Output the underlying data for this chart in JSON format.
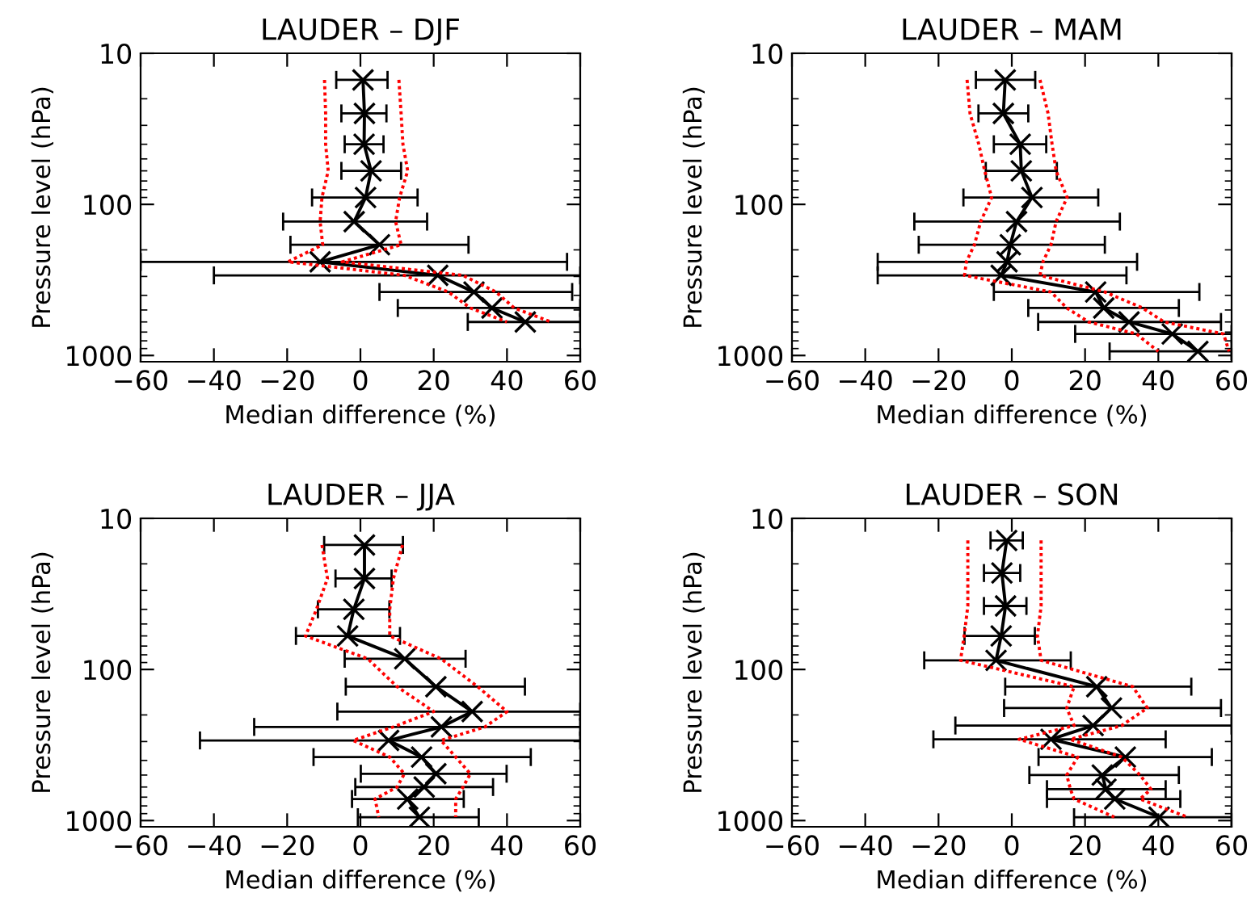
{
  "chart_data": [
    {
      "type": "line",
      "title": "LAUDER – DJF",
      "xlabel": "Median difference (%)",
      "ylabel": "Pressure level (hPa)",
      "log": "y",
      "grid": false,
      "xlim": [
        -60,
        60
      ],
      "xticks": [
        {
          "value": -60,
          "label": "−60"
        },
        {
          "value": -40,
          "label": "−40"
        },
        {
          "value": -20,
          "label": "−20"
        },
        0,
        20,
        40,
        60
      ],
      "ylim": [
        1100,
        10
      ],
      "yticks": [
        10,
        100,
        1000
      ],
      "series": [
        {
          "color": "#000000",
          "marker": "cross",
          "line_style": "solid",
          "x": [
            0.7,
            1.1,
            1.0,
            2.9,
            1.4,
            -1.7,
            5.2,
            -11,
            21.1,
            31,
            35.9,
            45
          ],
          "values": [
            15,
            25,
            40,
            60,
            90,
            130,
            185,
            240,
            295,
            380,
            485,
            600
          ],
          "xerrors": [
            [
              -6.6,
              7.4
            ],
            [
              -5.2,
              7.1
            ],
            [
              -4.3,
              6.3
            ],
            [
              -5.2,
              11.1
            ],
            [
              -13.2,
              15.6
            ],
            [
              -21.1,
              18.2
            ],
            [
              -19.1,
              29.5
            ],
            [
              -60,
              56.4
            ],
            [
              -40,
              60
            ],
            [
              5.2,
              57.8
            ],
            [
              10.2,
              60
            ],
            [
              29.3,
              60
            ]
          ]
        },
        {
          "color": "#ff0000",
          "marker": "none",
          "line_style": "dotted",
          "x": [
            -9.8,
            -9.5,
            -9.5,
            -8.8,
            -10.5,
            -11,
            -10.3,
            -19.8,
            12,
            24,
            30,
            40
          ],
          "values": [
            15,
            25,
            40,
            60,
            90,
            130,
            185,
            240,
            295,
            380,
            485,
            600
          ]
        },
        {
          "color": "#ff0000",
          "marker": "none",
          "line_style": "dotted",
          "x": [
            10.5,
            11.1,
            11.6,
            12.9,
            10.7,
            9.6,
            11.1,
            -5,
            28,
            37,
            42,
            52
          ],
          "values": [
            15,
            25,
            40,
            60,
            90,
            130,
            185,
            240,
            295,
            380,
            485,
            600
          ]
        }
      ]
    },
    {
      "type": "line",
      "title": "LAUDER – MAM",
      "xlabel": "Median difference (%)",
      "ylabel": "Pressure level (hPa)",
      "log": "y",
      "grid": false,
      "xlim": [
        -60,
        60
      ],
      "xticks": [
        {
          "value": -60,
          "label": "−60"
        },
        {
          "value": -40,
          "label": "−40"
        },
        {
          "value": -20,
          "label": "−20"
        },
        0,
        20,
        40,
        60
      ],
      "ylim": [
        1100,
        10
      ],
      "yticks": [
        10,
        100,
        1000
      ],
      "series": [
        {
          "color": "#000000",
          "marker": "cross",
          "line_style": "solid",
          "x": [
            -1.8,
            -2.3,
            2.3,
            2.6,
            5.5,
            1.3,
            -0.4,
            -1.3,
            -2.9,
            22.9,
            25.1,
            32,
            43.8,
            50.8
          ],
          "values": [
            15,
            25,
            40,
            60,
            90,
            130,
            185,
            240,
            295,
            380,
            485,
            600,
            720,
            940
          ],
          "xerrors": [
            [
              -9.8,
              6.4
            ],
            [
              -9.1,
              4.5
            ],
            [
              -4.9,
              9.4
            ],
            [
              -7.1,
              12.3
            ],
            [
              -13.2,
              23.6
            ],
            [
              -26.6,
              29.5
            ],
            [
              -25.4,
              25.4
            ],
            [
              -36.6,
              34.2
            ],
            [
              -36.6,
              31.3
            ],
            [
              -4.9,
              51.2
            ],
            [
              4.5,
              45.6
            ],
            [
              7.2,
              57.1
            ],
            [
              17.3,
              60
            ],
            [
              26.7,
              60
            ]
          ]
        },
        {
          "color": "#ff0000",
          "marker": "none",
          "line_style": "dotted",
          "x": [
            -12.2,
            -11.4,
            -9,
            -7.4,
            -5.5,
            -8.5,
            -10.2,
            -12.4,
            -12.9,
            10.7,
            15,
            21,
            34,
            40
          ],
          "values": [
            15,
            25,
            40,
            60,
            90,
            130,
            185,
            240,
            295,
            380,
            485,
            600,
            720,
            940
          ]
        },
        {
          "color": "#ff0000",
          "marker": "none",
          "line_style": "dotted",
          "x": [
            7.7,
            9.9,
            11,
            12.1,
            15.1,
            12.1,
            10.7,
            8.5,
            7.7,
            25.4,
            35.7,
            41.6,
            57.8,
            59.3
          ],
          "values": [
            15,
            25,
            40,
            60,
            90,
            130,
            185,
            240,
            295,
            380,
            485,
            600,
            720,
            940
          ]
        }
      ]
    },
    {
      "type": "line",
      "title": "LAUDER – JJA",
      "xlabel": "Median difference (%)",
      "ylabel": "Pressure level (hPa)",
      "log": "y",
      "grid": false,
      "xlim": [
        -60,
        60
      ],
      "xticks": [
        {
          "value": -60,
          "label": "−60"
        },
        {
          "value": -40,
          "label": "−40"
        },
        {
          "value": -20,
          "label": "−20"
        },
        0,
        20,
        40,
        60
      ],
      "ylim": [
        1100,
        10
      ],
      "yticks": [
        10,
        100,
        1000
      ],
      "series": [
        {
          "color": "#000000",
          "marker": "cross",
          "line_style": "solid",
          "x": [
            1.1,
            1.1,
            -1.8,
            -3.5,
            12.1,
            20.6,
            30.5,
            22.1,
            7.7,
            16.7,
            20.6,
            17.4,
            12.9,
            16.1
          ],
          "values": [
            15,
            25,
            40,
            60,
            85,
            130,
            190,
            240,
            295,
            380,
            490,
            600,
            720,
            950
          ],
          "xerrors": [
            [
              -9.9,
              11.6
            ],
            [
              -6.8,
              8.5
            ],
            [
              -11.6,
              7.9
            ],
            [
              -17.6,
              10.8
            ],
            [
              -4.3,
              28.7
            ],
            [
              -4,
              44.9
            ],
            [
              -6.3,
              60
            ],
            [
              -29,
              60
            ],
            [
              -43.8,
              60
            ],
            [
              -12.8,
              46.5
            ],
            [
              0.1,
              39.9
            ],
            [
              -1.4,
              36.2
            ],
            [
              -2.3,
              28.2
            ],
            [
              -0.7,
              32.3
            ]
          ]
        },
        {
          "color": "#ff0000",
          "marker": "none",
          "line_style": "dotted",
          "x": [
            -10.5,
            -9,
            -12,
            -15,
            2,
            10,
            20,
            9,
            -2,
            8,
            12,
            10,
            4,
            5
          ],
          "values": [
            15,
            25,
            40,
            60,
            85,
            130,
            190,
            240,
            295,
            380,
            490,
            600,
            720,
            950
          ]
        },
        {
          "color": "#ff0000",
          "marker": "none",
          "line_style": "dotted",
          "x": [
            11.5,
            9,
            8,
            8,
            22,
            32,
            40,
            34,
            22,
            26,
            30,
            28,
            26,
            26
          ],
          "values": [
            15,
            25,
            40,
            60,
            85,
            130,
            190,
            240,
            295,
            380,
            490,
            600,
            720,
            950
          ]
        }
      ]
    },
    {
      "type": "line",
      "title": "LAUDER – SON",
      "xlabel": "Median difference (%)",
      "ylabel": "Pressure level (hPa)",
      "log": "y",
      "grid": false,
      "xlim": [
        -60,
        60
      ],
      "xticks": [
        {
          "value": -60,
          "label": "−60"
        },
        {
          "value": -40,
          "label": "−40"
        },
        {
          "value": -20,
          "label": "−20"
        },
        0,
        20,
        40,
        60
      ],
      "ylim": [
        1100,
        10
      ],
      "yticks": [
        10,
        100,
        1000
      ],
      "series": [
        {
          "color": "#000000",
          "marker": "cross",
          "line_style": "solid",
          "x": [
            -1.4,
            -2.7,
            -1.7,
            -2.9,
            -4.3,
            23.2,
            27.2,
            22.2,
            10.7,
            31,
            24.7,
            25.7,
            28.1,
            40.2
          ],
          "values": [
            14,
            23,
            38,
            60,
            87,
            130,
            180,
            235,
            290,
            380,
            500,
            620,
            720,
            950
          ],
          "xerrors": [
            [
              -5.8,
              3
            ],
            [
              -7.6,
              2.3
            ],
            [
              -7.6,
              4
            ],
            [
              -12.9,
              6.3
            ],
            [
              -23.9,
              16.1
            ],
            [
              -1.8,
              49
            ],
            [
              -2.1,
              57.1
            ],
            [
              -15.4,
              60
            ],
            [
              -21.4,
              42
            ],
            [
              7.3,
              54.6
            ],
            [
              4.8,
              45.6
            ],
            [
              9.6,
              42
            ],
            [
              9.6,
              46
            ],
            [
              17,
              60
            ]
          ]
        },
        {
          "color": "#ff0000",
          "marker": "none",
          "line_style": "dotted",
          "x": [
            -12,
            -12,
            -12,
            -13,
            -14,
            17,
            15,
            17,
            2,
            18,
            15,
            16,
            17,
            28
          ],
          "values": [
            14,
            23,
            38,
            60,
            87,
            130,
            180,
            235,
            290,
            380,
            500,
            620,
            720,
            950
          ]
        },
        {
          "color": "#ff0000",
          "marker": "none",
          "line_style": "dotted",
          "x": [
            8,
            8,
            8,
            7,
            8,
            33,
            37,
            30,
            16,
            30,
            35,
            38,
            35,
            48
          ],
          "values": [
            14,
            23,
            38,
            60,
            87,
            130,
            180,
            235,
            290,
            380,
            500,
            620,
            720,
            950
          ]
        }
      ]
    }
  ]
}
